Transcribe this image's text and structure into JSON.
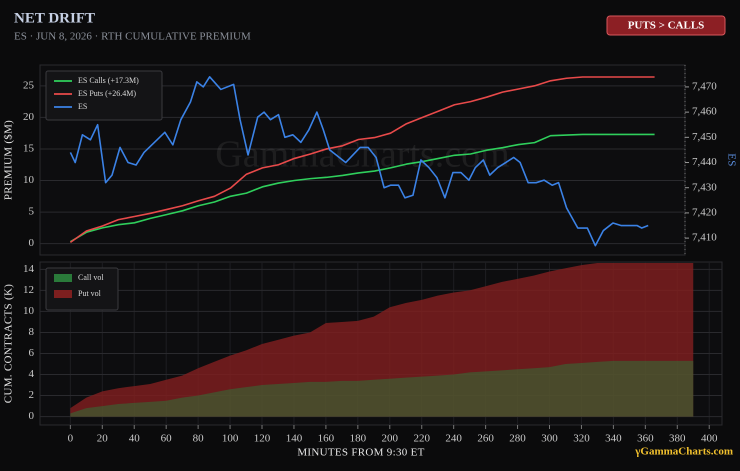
{
  "title": "NET DRIFT",
  "subtitle": "ES · JUN 8, 2026 · RTH CUMULATIVE PREMIUM",
  "badge": "PUTS > CALLS",
  "brand": "γGammaCharts.com",
  "chart_data": [
    {
      "type": "line",
      "watermark": "GammaCharts.com",
      "ylabel": "PREMIUM ($M)",
      "y2label": "ES",
      "xlim": [
        -19,
        384
      ],
      "ylim": [
        -1.8,
        28.3
      ],
      "yticks": [
        0,
        5,
        10,
        15,
        20,
        25
      ],
      "y2lim": [
        7403.3,
        7478.7
      ],
      "y2ticks": [
        {
          "value": 7410,
          "label": "7,410"
        },
        {
          "value": 7420,
          "label": "7,420"
        },
        {
          "value": 7430,
          "label": "7,430"
        },
        {
          "value": 7440,
          "label": "7,440"
        },
        {
          "value": 7450,
          "label": "7,450"
        },
        {
          "value": 7460,
          "label": "7,460"
        },
        {
          "value": 7470,
          "label": "7,470"
        }
      ],
      "grid": true,
      "legend": "upper left",
      "series": [
        {
          "name": "ES Calls (+17.3M)",
          "color": "#2fcf5c",
          "x": [
            0,
            10,
            20,
            30,
            40,
            50,
            60,
            70,
            80,
            90,
            100,
            110,
            120,
            130,
            140,
            150,
            160,
            170,
            180,
            190,
            200,
            210,
            220,
            230,
            240,
            250,
            260,
            270,
            280,
            290,
            300,
            310,
            320,
            330,
            340,
            350,
            360,
            365
          ],
          "values": [
            0.3,
            1.8,
            2.5,
            3,
            3.3,
            4,
            4.6,
            5.2,
            6,
            6.6,
            7.5,
            8,
            9,
            9.6,
            10,
            10.3,
            10.5,
            10.8,
            11.2,
            11.5,
            12,
            12.6,
            13,
            13.5,
            14,
            14.2,
            14.8,
            15.2,
            15.7,
            16,
            17.1,
            17.2,
            17.3,
            17.3,
            17.3,
            17.3,
            17.3,
            17.3
          ]
        },
        {
          "name": "ES Puts (+26.4M)",
          "color": "#e84a4a",
          "x": [
            0,
            10,
            20,
            30,
            40,
            50,
            60,
            70,
            80,
            90,
            100,
            110,
            120,
            130,
            140,
            150,
            160,
            170,
            180,
            190,
            200,
            210,
            220,
            230,
            240,
            250,
            260,
            270,
            280,
            290,
            300,
            310,
            320,
            330,
            340,
            350,
            360,
            365
          ],
          "values": [
            0.2,
            2,
            2.8,
            3.8,
            4.3,
            4.8,
            5.4,
            6,
            6.8,
            7.5,
            8.8,
            11,
            12,
            12.5,
            13.5,
            14.2,
            15,
            15.5,
            16.5,
            16.8,
            17.5,
            19,
            20,
            21,
            22,
            22.5,
            23.2,
            24,
            24.5,
            25,
            25.8,
            26.2,
            26.4,
            26.4,
            26.4,
            26.4,
            26.4,
            26.4
          ]
        },
        {
          "name": "ES",
          "color": "#3b82e6",
          "axis": "y2",
          "x": [
            0,
            3,
            7.5,
            12.5,
            17,
            22,
            26,
            31,
            36,
            41,
            46,
            59,
            64,
            69,
            75,
            79,
            83,
            87,
            94,
            102,
            106,
            111,
            117,
            121,
            125,
            130,
            134,
            139,
            144,
            149,
            154,
            158,
            162,
            172,
            181,
            186,
            191,
            196,
            200,
            205,
            209,
            214,
            219,
            224,
            229,
            234,
            239,
            244,
            249,
            253,
            258,
            262,
            267,
            272,
            277,
            281,
            286,
            291,
            296,
            301,
            305,
            310,
            317,
            323,
            328,
            333,
            339,
            344,
            349,
            354,
            357,
            361
          ],
          "values": [
            7444,
            7440,
            7451,
            7449,
            7455,
            7432,
            7435,
            7446,
            7440,
            7439,
            7444,
            7452,
            7447,
            7457,
            7464,
            7472,
            7470,
            7474,
            7469,
            7471,
            7457,
            7443,
            7458,
            7460,
            7457,
            7459,
            7450,
            7451,
            7448,
            7453,
            7460,
            7453,
            7445,
            7440,
            7446,
            7446,
            7442,
            7430,
            7431,
            7431,
            7426,
            7427,
            7441,
            7438,
            7434,
            7426,
            7436,
            7436,
            7433,
            7438,
            7441,
            7435,
            7438,
            7440,
            7442,
            7440,
            7432,
            7432,
            7433,
            7431,
            7432,
            7422,
            7414,
            7414,
            7407,
            7413,
            7416,
            7415,
            7415,
            7415,
            7414,
            7415
          ]
        }
      ]
    },
    {
      "type": "area",
      "ylabel": "CUM. CONTRACTS (K)",
      "xlabel": "MINUTES FROM 9:30 ET",
      "xlim": [
        -19,
        408
      ],
      "xticks": [
        0,
        20,
        40,
        60,
        80,
        100,
        120,
        140,
        160,
        180,
        200,
        220,
        240,
        260,
        280,
        300,
        320,
        340,
        360,
        380,
        400
      ],
      "ylim": [
        -0.8,
        14.7
      ],
      "yticks": [
        0,
        2,
        4,
        6,
        8,
        10,
        12,
        14
      ],
      "grid": true,
      "legend": "upper left",
      "x": [
        0,
        10,
        20,
        30,
        40,
        50,
        60,
        70,
        80,
        90,
        100,
        110,
        120,
        130,
        140,
        150,
        160,
        170,
        180,
        190,
        200,
        210,
        220,
        230,
        240,
        250,
        260,
        270,
        280,
        290,
        300,
        310,
        320,
        330,
        340,
        350,
        360,
        370,
        380,
        390
      ],
      "series": [
        {
          "name": "Call vol",
          "color": "#2a7a3a",
          "values": [
            0.3,
            0.8,
            1.0,
            1.2,
            1.3,
            1.4,
            1.5,
            1.8,
            2.0,
            2.3,
            2.6,
            2.8,
            3.0,
            3.1,
            3.2,
            3.3,
            3.3,
            3.4,
            3.4,
            3.5,
            3.6,
            3.7,
            3.8,
            3.9,
            4.0,
            4.2,
            4.3,
            4.4,
            4.5,
            4.6,
            4.7,
            5.0,
            5.1,
            5.2,
            5.3,
            5.3,
            5.3,
            5.3,
            5.3,
            5.3
          ]
        },
        {
          "name": "Put vol",
          "color": "#7d1f1f",
          "values": [
            0.8,
            1.8,
            2.4,
            2.7,
            2.9,
            3.1,
            3.5,
            3.9,
            4.6,
            5.2,
            5.8,
            6.3,
            6.9,
            7.3,
            7.7,
            8.0,
            8.9,
            9.0,
            9.1,
            9.5,
            10.4,
            10.8,
            11.1,
            11.5,
            11.8,
            12.0,
            12.4,
            12.8,
            13.1,
            13.4,
            13.8,
            14.1,
            14.4,
            14.6,
            14.6,
            14.6,
            14.6,
            14.6,
            14.6,
            14.6
          ]
        }
      ]
    }
  ]
}
